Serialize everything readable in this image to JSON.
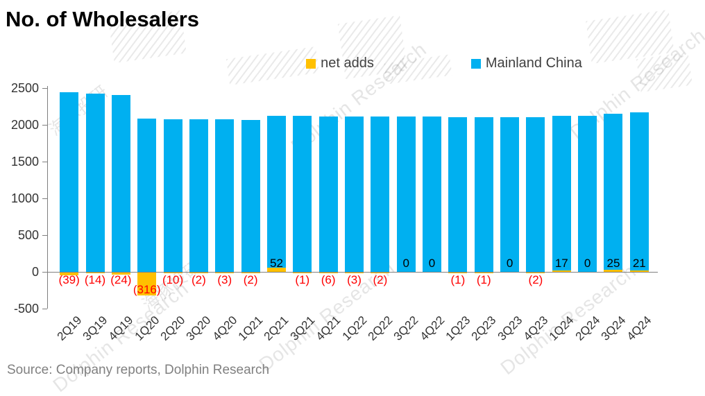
{
  "title": "No. of Wholesalers",
  "legend": [
    {
      "label": "net adds",
      "color": "#FFC000"
    },
    {
      "label": "Mainland China",
      "color": "#00B0F0"
    }
  ],
  "source": "Source: Company reports, Dolphin Research",
  "watermark": {
    "en": "Dolphin Research",
    "cn": "海豚投研"
  },
  "colors": {
    "mainland_china": "#00B0F0",
    "net_adds": "#FFC000",
    "negative_label": "#FF0000",
    "positive_label": "#000000",
    "axis": "#7f7f7f",
    "tick_text": "#333333",
    "source_text": "#808080"
  },
  "chart_data": {
    "type": "bar",
    "title": "No. of Wholesalers",
    "categories": [
      "2Q19",
      "3Q19",
      "4Q19",
      "1Q20",
      "2Q20",
      "3Q20",
      "4Q20",
      "1Q21",
      "2Q21",
      "3Q21",
      "4Q21",
      "1Q22",
      "2Q22",
      "3Q22",
      "4Q22",
      "1Q23",
      "2Q23",
      "3Q23",
      "4Q23",
      "1Q24",
      "2Q24",
      "3Q24",
      "4Q24"
    ],
    "series": [
      {
        "name": "net adds",
        "color": "#FFC000",
        "values": [
          -39,
          -14,
          -24,
          -316,
          -10,
          -2,
          -3,
          -2,
          52,
          -1,
          -6,
          -3,
          -2,
          0,
          0,
          -1,
          -1,
          0,
          -2,
          17,
          0,
          25,
          21
        ],
        "labels": [
          "(39)",
          "(14)",
          "(24)",
          "(316)",
          "(10)",
          "(2)",
          "(3)",
          "(2)",
          "52",
          "(1)",
          "(6)",
          "(3)",
          "(2)",
          "0",
          "0",
          "(1)",
          "(1)",
          "0",
          "(2)",
          "17",
          "0",
          "25",
          "21"
        ]
      },
      {
        "name": "Mainland China",
        "color": "#00B0F0",
        "values": [
          2440,
          2426,
          2402,
          2086,
          2076,
          2074,
          2071,
          2069,
          2121,
          2120,
          2114,
          2111,
          2109,
          2109,
          2109,
          2108,
          2107,
          2107,
          2105,
          2122,
          2122,
          2147,
          2168
        ]
      }
    ],
    "y_ticks": [
      2500,
      2000,
      1500,
      1000,
      500,
      0,
      -500
    ],
    "ylim": [
      -500,
      2500
    ],
    "grid": false,
    "legend_position": "top-center"
  }
}
